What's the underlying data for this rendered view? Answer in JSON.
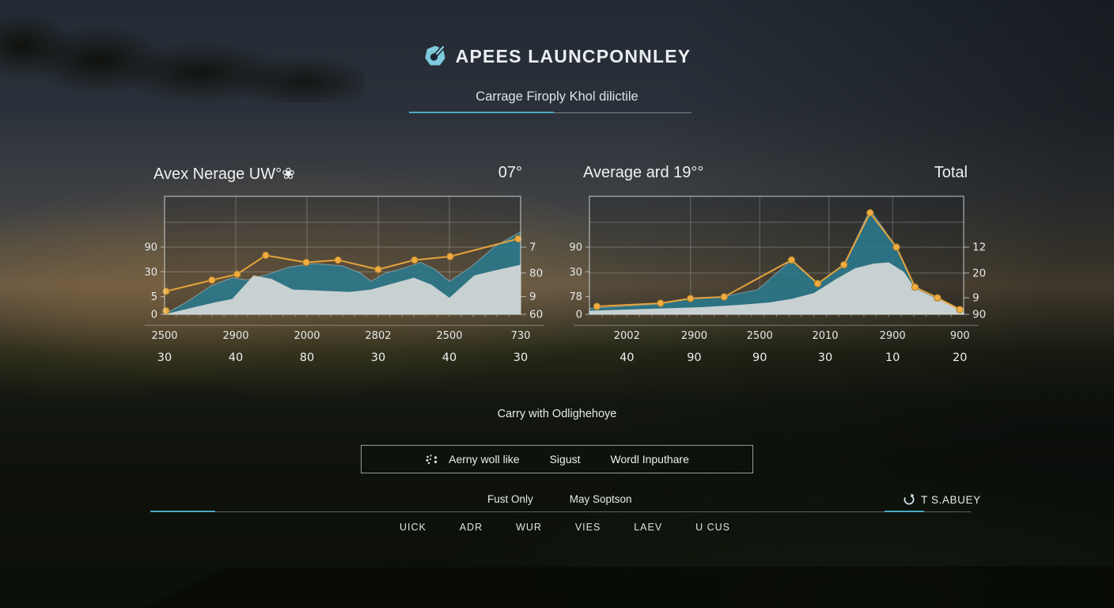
{
  "header": {
    "app_title": "APEES LAUNCPONNLEY",
    "subtitle": "Carrage Firoply Khol dilictile",
    "logo_icon": "golf-gauge-icon"
  },
  "colors": {
    "accent_teal": "#4fa8c5",
    "line_orange": "#e5a43c",
    "marker_orange": "#f0ac41",
    "area_teal": "#2b7a8e",
    "area_gray": "#d5d9d8",
    "grid": "rgba(200,205,205,0.33)",
    "border": "rgba(215,220,220,0.75)",
    "text": "#e6e9e8"
  },
  "chart_data": [
    {
      "type": "area",
      "title": "Avex Nerage UW°❀",
      "right_label": "07°",
      "legend_position": "none",
      "grid": true,
      "left_axis_ticks": [
        {
          "label": "90",
          "v": 57
        },
        {
          "label": "30",
          "v": 36
        },
        {
          "label": "5",
          "v": 15
        },
        {
          "label": "0",
          "v": 0
        }
      ],
      "right_axis_ticks": [
        {
          "label": "7",
          "v": 57
        },
        {
          "label": "80",
          "v": 35
        },
        {
          "label": "9",
          "v": 15
        },
        {
          "label": "60",
          "v": 0
        }
      ],
      "h_grid": [
        78,
        57,
        36
      ],
      "x_labels_top": [
        "2500",
        "2900",
        "2000",
        "2802",
        "2500",
        "730"
      ],
      "x_labels_bottom": [
        "30",
        "40",
        "80",
        "30",
        "40",
        "30"
      ],
      "series": {
        "teal_area": [
          [
            0,
            0
          ],
          [
            0.06,
            10
          ],
          [
            0.13,
            24
          ],
          [
            0.19,
            31
          ],
          [
            0.23,
            29
          ],
          [
            0.28,
            33
          ],
          [
            0.35,
            40
          ],
          [
            0.42,
            43
          ],
          [
            0.5,
            41
          ],
          [
            0.55,
            35
          ],
          [
            0.58,
            28
          ],
          [
            0.62,
            35
          ],
          [
            0.66,
            38
          ],
          [
            0.72,
            44
          ],
          [
            0.76,
            38
          ],
          [
            0.8,
            28
          ],
          [
            0.86,
            40
          ],
          [
            0.93,
            58
          ],
          [
            1,
            70
          ]
        ],
        "gray_area": [
          [
            0,
            0
          ],
          [
            0.07,
            5
          ],
          [
            0.14,
            10
          ],
          [
            0.19,
            13
          ],
          [
            0.25,
            33
          ],
          [
            0.3,
            30
          ],
          [
            0.36,
            21
          ],
          [
            0.44,
            20
          ],
          [
            0.52,
            19
          ],
          [
            0.58,
            21
          ],
          [
            0.64,
            26
          ],
          [
            0.7,
            31
          ],
          [
            0.75,
            25
          ],
          [
            0.8,
            14
          ],
          [
            0.87,
            33
          ],
          [
            0.94,
            38
          ],
          [
            1,
            42
          ]
        ],
        "orange_line": [
          [
            0.004,
            19.5
          ],
          [
            0.133,
            29
          ],
          [
            0.204,
            34
          ],
          [
            0.284,
            50
          ],
          [
            0.398,
            44
          ],
          [
            0.487,
            46
          ],
          [
            0.6,
            38
          ],
          [
            0.702,
            46
          ],
          [
            0.802,
            49
          ],
          [
            0.993,
            64
          ]
        ],
        "extra_marker": [
          0.004,
          3
        ]
      }
    },
    {
      "type": "area",
      "title": "Average ard 19°°",
      "right_label": "Total",
      "legend_position": "none",
      "grid": true,
      "left_axis_ticks": [
        {
          "label": "90",
          "v": 57
        },
        {
          "label": "30",
          "v": 36
        },
        {
          "label": "78",
          "v": 15
        },
        {
          "label": "0",
          "v": 0
        }
      ],
      "right_axis_ticks": [
        {
          "label": "12",
          "v": 57
        },
        {
          "label": "20",
          "v": 35
        },
        {
          "label": "9",
          "v": 14
        },
        {
          "label": "90",
          "v": 0
        }
      ],
      "h_grid": [
        78,
        57,
        35
      ],
      "x_labels_top": [
        "2002",
        "2900",
        "2500",
        "2010",
        "2900",
        "900"
      ],
      "x_labels_bottom": [
        "40",
        "90",
        "90",
        "30",
        "10",
        "20"
      ],
      "series": {
        "teal_area": [
          [
            0,
            5
          ],
          [
            0.1,
            7
          ],
          [
            0.19,
            9
          ],
          [
            0.27,
            13
          ],
          [
            0.36,
            15
          ],
          [
            0.45,
            21
          ],
          [
            0.54,
            46
          ],
          [
            0.61,
            26
          ],
          [
            0.68,
            42
          ],
          [
            0.75,
            89
          ],
          [
            0.82,
            57
          ],
          [
            0.87,
            23
          ],
          [
            0.93,
            14
          ],
          [
            1,
            3
          ]
        ],
        "gray_area": [
          [
            0,
            3
          ],
          [
            0.1,
            4
          ],
          [
            0.2,
            5
          ],
          [
            0.3,
            6
          ],
          [
            0.4,
            8
          ],
          [
            0.48,
            10
          ],
          [
            0.54,
            13
          ],
          [
            0.6,
            18
          ],
          [
            0.66,
            30
          ],
          [
            0.71,
            39
          ],
          [
            0.76,
            43
          ],
          [
            0.8,
            44
          ],
          [
            0.84,
            36
          ],
          [
            0.87,
            22
          ],
          [
            0.93,
            13
          ],
          [
            1,
            3
          ]
        ],
        "orange_line": [
          [
            0.02,
            6.7
          ],
          [
            0.19,
            9.4
          ],
          [
            0.27,
            13.4
          ],
          [
            0.36,
            14.8
          ],
          [
            0.54,
            46
          ],
          [
            0.61,
            26
          ],
          [
            0.68,
            42
          ],
          [
            0.75,
            86
          ],
          [
            0.82,
            57
          ],
          [
            0.87,
            23
          ],
          [
            0.93,
            14
          ],
          [
            0.99,
            4
          ]
        ]
      }
    }
  ],
  "summary": {
    "caption": "Carry with Odlighehoye"
  },
  "toolbar": {
    "icon": "sparkle-dots-icon",
    "items": [
      "Aerny woll like",
      "Sigust",
      "Wordl Inputhare"
    ]
  },
  "footer": {
    "left_tabs": [
      "Fust Only",
      "May Soptson"
    ],
    "sync_icon": "refresh-icon",
    "sync_label": "T S.ABUEY",
    "nav_items": [
      "UICK",
      "ADR",
      "WUR",
      "VIES",
      "LAEV",
      "U CUS"
    ]
  }
}
